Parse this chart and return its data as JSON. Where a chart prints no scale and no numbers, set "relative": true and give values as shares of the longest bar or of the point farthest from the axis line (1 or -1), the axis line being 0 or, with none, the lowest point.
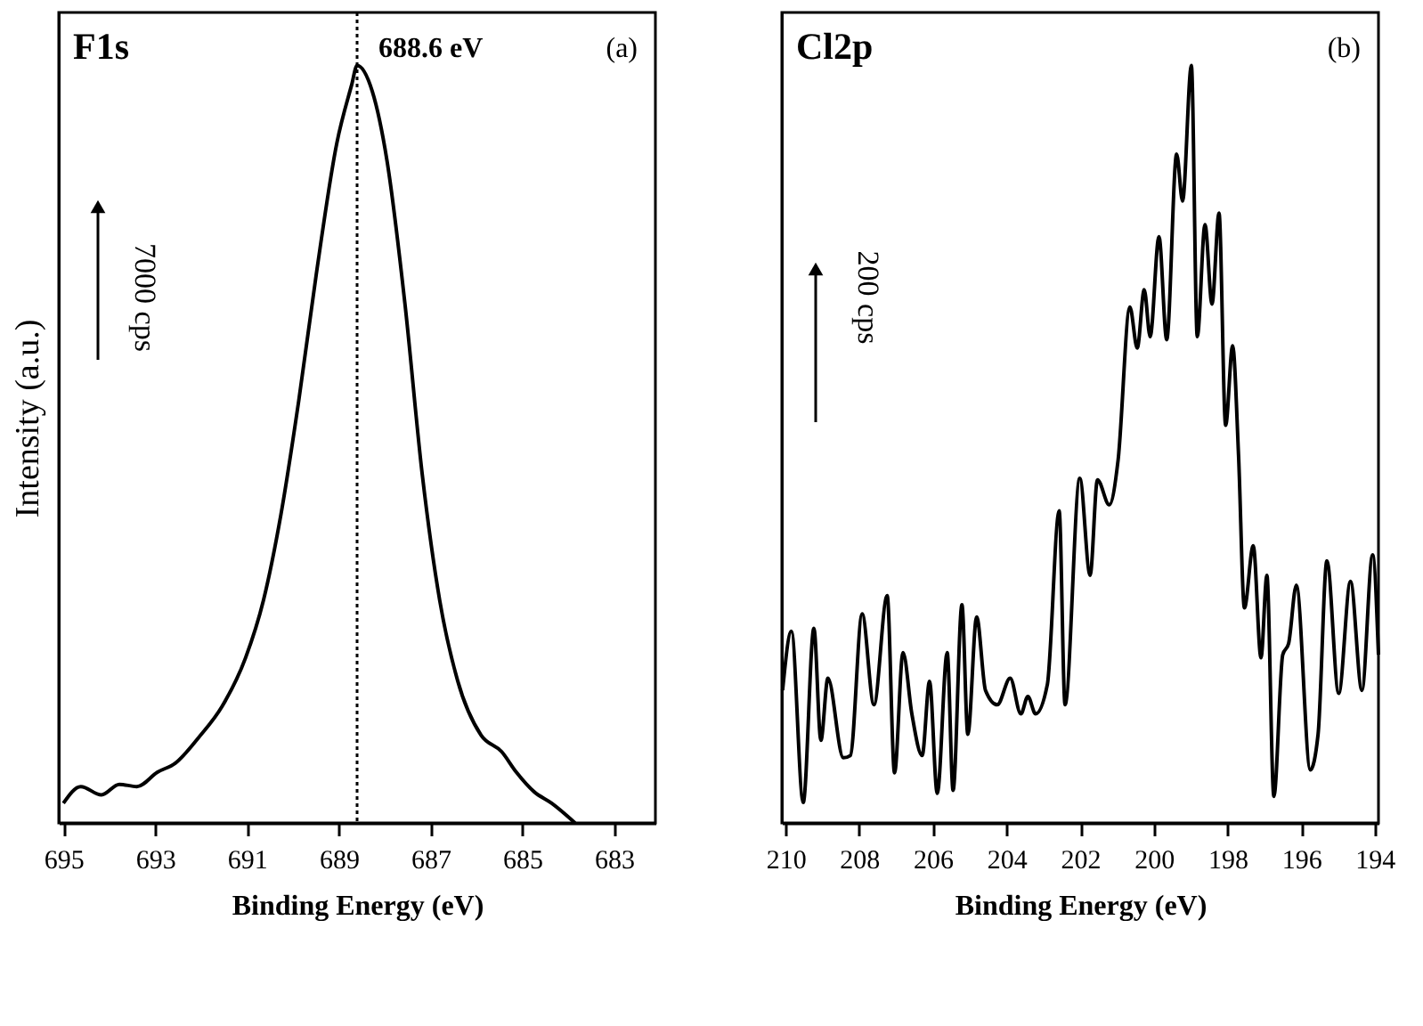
{
  "chart_data": [
    {
      "type": "line",
      "xlabel": "Binding Energy (eV)",
      "ylabel": "Intensity (a.u.)",
      "relative": true,
      "grid": false,
      "annotations": [
        "F1s",
        "(a)",
        "7000 cps"
      ],
      "xlim": [
        695.1,
        682.1
      ],
      "xticks": [
        695,
        693,
        691,
        689,
        687,
        685,
        683
      ],
      "ref_lines": [
        {
          "axis": "x",
          "value": 688.6,
          "label": "688.6 eV",
          "line_style": "dotted",
          "color": "#000000"
        }
      ],
      "x": [
        695.0,
        694.62,
        694.17,
        693.78,
        693.4,
        692.95,
        692.56,
        692.05,
        691.54,
        691.03,
        690.64,
        690.26,
        689.87,
        689.49,
        689.04,
        688.72,
        688.6,
        688.27,
        687.95,
        687.56,
        687.18,
        686.8,
        686.41,
        685.9,
        685.45,
        685.13,
        684.74,
        684.36,
        683.85
      ],
      "series": [
        {
          "color": "#000000",
          "values": [
            0.026,
            0.048,
            0.037,
            0.051,
            0.048,
            0.067,
            0.079,
            0.113,
            0.154,
            0.218,
            0.294,
            0.407,
            0.558,
            0.724,
            0.898,
            0.974,
            1.0,
            0.966,
            0.875,
            0.687,
            0.46,
            0.294,
            0.188,
            0.116,
            0.094,
            0.067,
            0.041,
            0.026,
            0.0
          ]
        }
      ]
    },
    {
      "type": "line",
      "xlabel": "Binding Energy (eV)",
      "relative": true,
      "grid": false,
      "annotations": [
        "Cl2p",
        "(b)",
        "200 cps"
      ],
      "xlim": [
        210.1,
        193.9
      ],
      "xticks": [
        210,
        208,
        206,
        204,
        202,
        200,
        198,
        196,
        194
      ],
      "x": [
        210.08,
        209.84,
        209.52,
        209.23,
        209.04,
        208.85,
        208.43,
        208.24,
        207.92,
        207.6,
        207.24,
        207.04,
        206.81,
        206.57,
        206.29,
        206.09,
        205.88,
        205.61,
        205.45,
        205.21,
        205.05,
        204.81,
        204.57,
        204.25,
        203.9,
        203.61,
        203.42,
        203.21,
        202.89,
        202.57,
        202.41,
        202.01,
        201.73,
        201.53,
        201.21,
        200.97,
        200.65,
        200.45,
        200.26,
        200.1,
        199.86,
        199.65,
        199.38,
        199.22,
        198.98,
        198.82,
        198.61,
        198.42,
        198.23,
        198.05,
        197.86,
        197.7,
        197.54,
        197.3,
        197.09,
        196.93,
        196.74,
        196.5,
        196.34,
        196.13,
        195.75,
        195.54,
        195.3,
        194.98,
        194.66,
        194.35,
        194.06,
        193.9
      ],
      "series": [
        {
          "color": "#000000",
          "values": [
            0.175,
            0.253,
            0.027,
            0.257,
            0.109,
            0.191,
            0.086,
            0.089,
            0.276,
            0.156,
            0.3,
            0.066,
            0.225,
            0.144,
            0.089,
            0.187,
            0.039,
            0.225,
            0.043,
            0.288,
            0.117,
            0.272,
            0.175,
            0.156,
            0.191,
            0.144,
            0.167,
            0.144,
            0.183,
            0.412,
            0.156,
            0.455,
            0.327,
            0.453,
            0.42,
            0.479,
            0.681,
            0.627,
            0.704,
            0.642,
            0.774,
            0.638,
            0.883,
            0.821,
            1.0,
            0.642,
            0.79,
            0.685,
            0.805,
            0.525,
            0.63,
            0.486,
            0.284,
            0.366,
            0.218,
            0.327,
            0.035,
            0.222,
            0.237,
            0.314,
            0.07,
            0.117,
            0.346,
            0.171,
            0.319,
            0.175,
            0.354,
            0.222
          ]
        }
      ]
    }
  ]
}
